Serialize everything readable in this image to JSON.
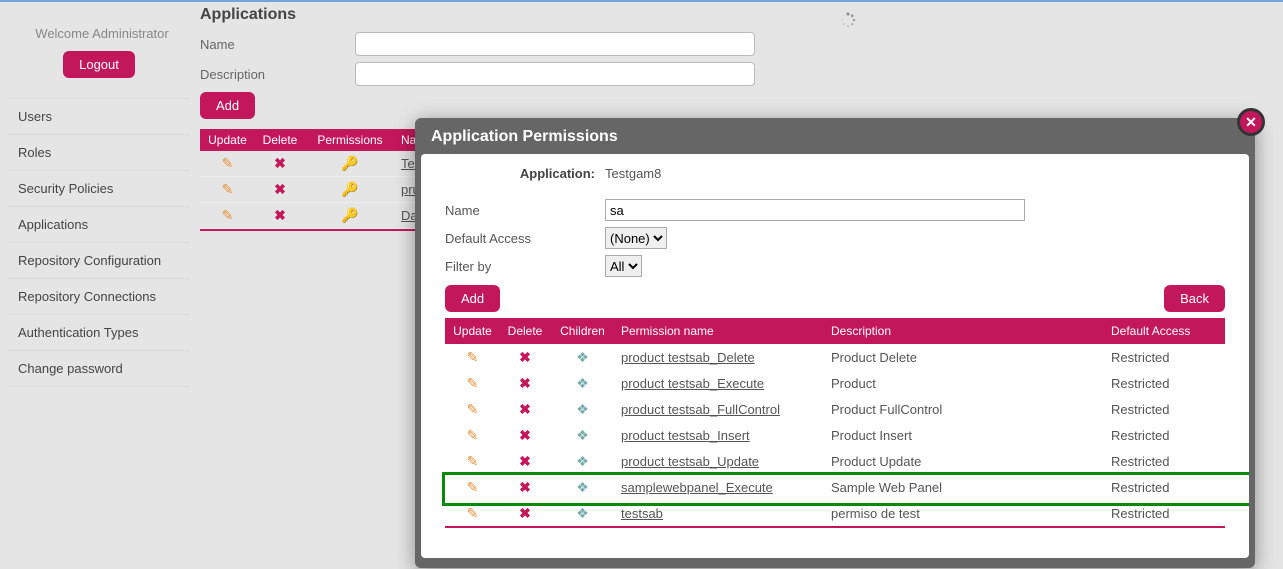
{
  "colors": {
    "accent": "#c2185b",
    "page_bg": "#e5e5e5",
    "modal_frame": "#666666",
    "highlight_border": "#0a8a0a",
    "top_rule": "#6fa8dc"
  },
  "sidebar": {
    "welcome": "Welcome Administrator",
    "logout": "Logout",
    "items": [
      "Users",
      "Roles",
      "Security Policies",
      "Applications",
      "Repository Configuration",
      "Repository Connections",
      "Authentication Types",
      "Change password"
    ]
  },
  "page": {
    "title": "Applications",
    "name_label": "Name",
    "name_value": "",
    "desc_label": "Description",
    "desc_value": "",
    "add": "Add",
    "columns": {
      "update": "Update",
      "delete": "Delete",
      "permissions": "Permissions",
      "name": "Name"
    },
    "rows": [
      {
        "name": "Test"
      },
      {
        "name": "pruet"
      },
      {
        "name": "Dashb"
      }
    ]
  },
  "modal": {
    "title": "Application Permissions",
    "app_label": "Application:",
    "app_value": "Testgam8",
    "name_label": "Name",
    "name_value": "sa",
    "access_label": "Default Access",
    "access_options": [
      "(None)"
    ],
    "access_selected": "(None)",
    "filter_label": "Filter by",
    "filter_options": [
      "All"
    ],
    "filter_selected": "All",
    "add": "Add",
    "back": "Back",
    "columns": {
      "update": "Update",
      "delete": "Delete",
      "children": "Children",
      "name": "Permission name",
      "desc": "Description",
      "access": "Default Access"
    },
    "rows": [
      {
        "name": "product testsab_Delete",
        "desc": "Product Delete",
        "access": "Restricted",
        "highlighted": false
      },
      {
        "name": "product testsab_Execute",
        "desc": "Product",
        "access": "Restricted",
        "highlighted": false
      },
      {
        "name": "product testsab_FullControl",
        "desc": "Product FullControl",
        "access": "Restricted",
        "highlighted": false
      },
      {
        "name": "product testsab_Insert",
        "desc": "Product Insert",
        "access": "Restricted",
        "highlighted": false
      },
      {
        "name": "product testsab_Update",
        "desc": "Product Update",
        "access": "Restricted",
        "highlighted": false
      },
      {
        "name": "samplewebpanel_Execute",
        "desc": "Sample Web Panel",
        "access": "Restricted",
        "highlighted": true
      },
      {
        "name": "testsab",
        "desc": "permiso de test",
        "access": "Restricted",
        "highlighted": false
      }
    ]
  }
}
